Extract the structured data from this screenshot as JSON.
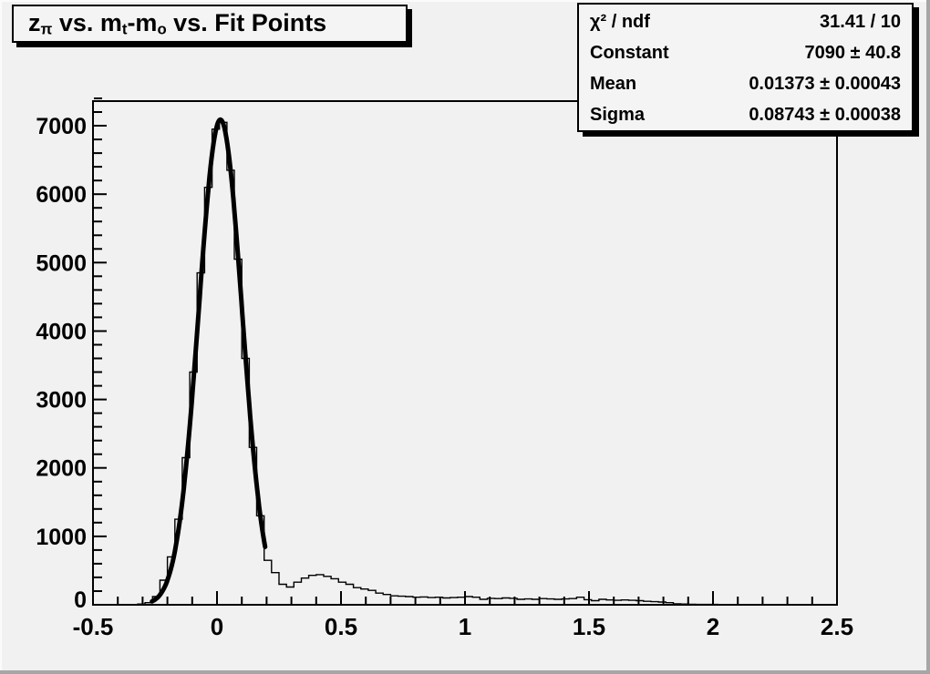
{
  "title": {
    "full": "z_{π} vs. m_{t}-m_{o} vs. Fit Points",
    "parts": [
      {
        "text": "z"
      },
      {
        "text": "π",
        "sub": true
      },
      {
        "text": " vs. m"
      },
      {
        "text": "t",
        "sub": true
      },
      {
        "text": "-m"
      },
      {
        "text": "o",
        "sub": true
      },
      {
        "text": " vs. Fit Points"
      }
    ]
  },
  "stats": {
    "rows": [
      {
        "label": "χ² / ndf",
        "value": "31.41 / 10"
      },
      {
        "label": "Constant",
        "value": "7090 ± 40.8"
      },
      {
        "label": "Mean",
        "value": "0.01373 ± 0.00043"
      },
      {
        "label": "Sigma",
        "value": "0.08743 ± 0.00038"
      }
    ]
  },
  "colors": {
    "canvas_bg": "#f1f1f1",
    "box_bg": "#f4f4f4",
    "line": "#000000",
    "bevel_dark": "#a6a6a6",
    "bevel_light": "#fbfbfb"
  },
  "chart_data": {
    "type": "bar",
    "subtype": "histogram-with-gaussian-fit",
    "title": "z_{π} vs. m_{t}-m_{o} vs. Fit Points",
    "xlabel": "",
    "ylabel": "",
    "grid": false,
    "legend_position": "stats-box-top-right",
    "xlim": [
      -0.5,
      2.5
    ],
    "ylim": [
      0,
      7360
    ],
    "x_major_ticks": [
      -0.5,
      0,
      0.5,
      1,
      1.5,
      2,
      2.5
    ],
    "x_tick_labels": [
      "-0.5",
      "0",
      "0.5",
      "1",
      "1.5",
      "2",
      "2.5"
    ],
    "x_minor_step": 0.1,
    "y_major_ticks": [
      0,
      1000,
      2000,
      3000,
      4000,
      5000,
      6000,
      7000
    ],
    "y_tick_labels": [
      "0",
      "1000",
      "2000",
      "3000",
      "4000",
      "5000",
      "6000",
      "7000"
    ],
    "y_minor_step": 200,
    "bin_start": -0.5,
    "bin_width": 0.03,
    "bin_values": [
      0,
      0,
      0,
      0,
      0,
      0,
      10,
      30,
      120,
      360,
      700,
      1250,
      2150,
      3400,
      4850,
      6100,
      6950,
      7050,
      6350,
      5050,
      3600,
      2300,
      1300,
      650,
      470,
      300,
      260,
      330,
      390,
      430,
      440,
      415,
      380,
      330,
      300,
      250,
      230,
      210,
      170,
      150,
      130,
      125,
      120,
      110,
      115,
      105,
      110,
      100,
      105,
      110,
      120,
      110,
      80,
      95,
      90,
      100,
      95,
      80,
      85,
      80,
      90,
      85,
      80,
      85,
      90,
      110,
      75,
      60,
      80,
      70,
      65,
      70,
      65,
      60,
      50,
      45,
      40,
      30,
      15,
      10,
      8,
      5,
      5,
      5,
      0,
      0,
      0,
      0,
      0,
      0,
      0,
      0,
      0,
      0,
      0,
      0,
      0,
      0,
      0,
      0
    ],
    "fit": {
      "shape": "gaussian",
      "constant": 7090,
      "mean": 0.01373,
      "sigma": 0.08743,
      "chi2": 31.41,
      "ndf": 10,
      "draw_range": [
        -0.262,
        0.196
      ]
    }
  }
}
